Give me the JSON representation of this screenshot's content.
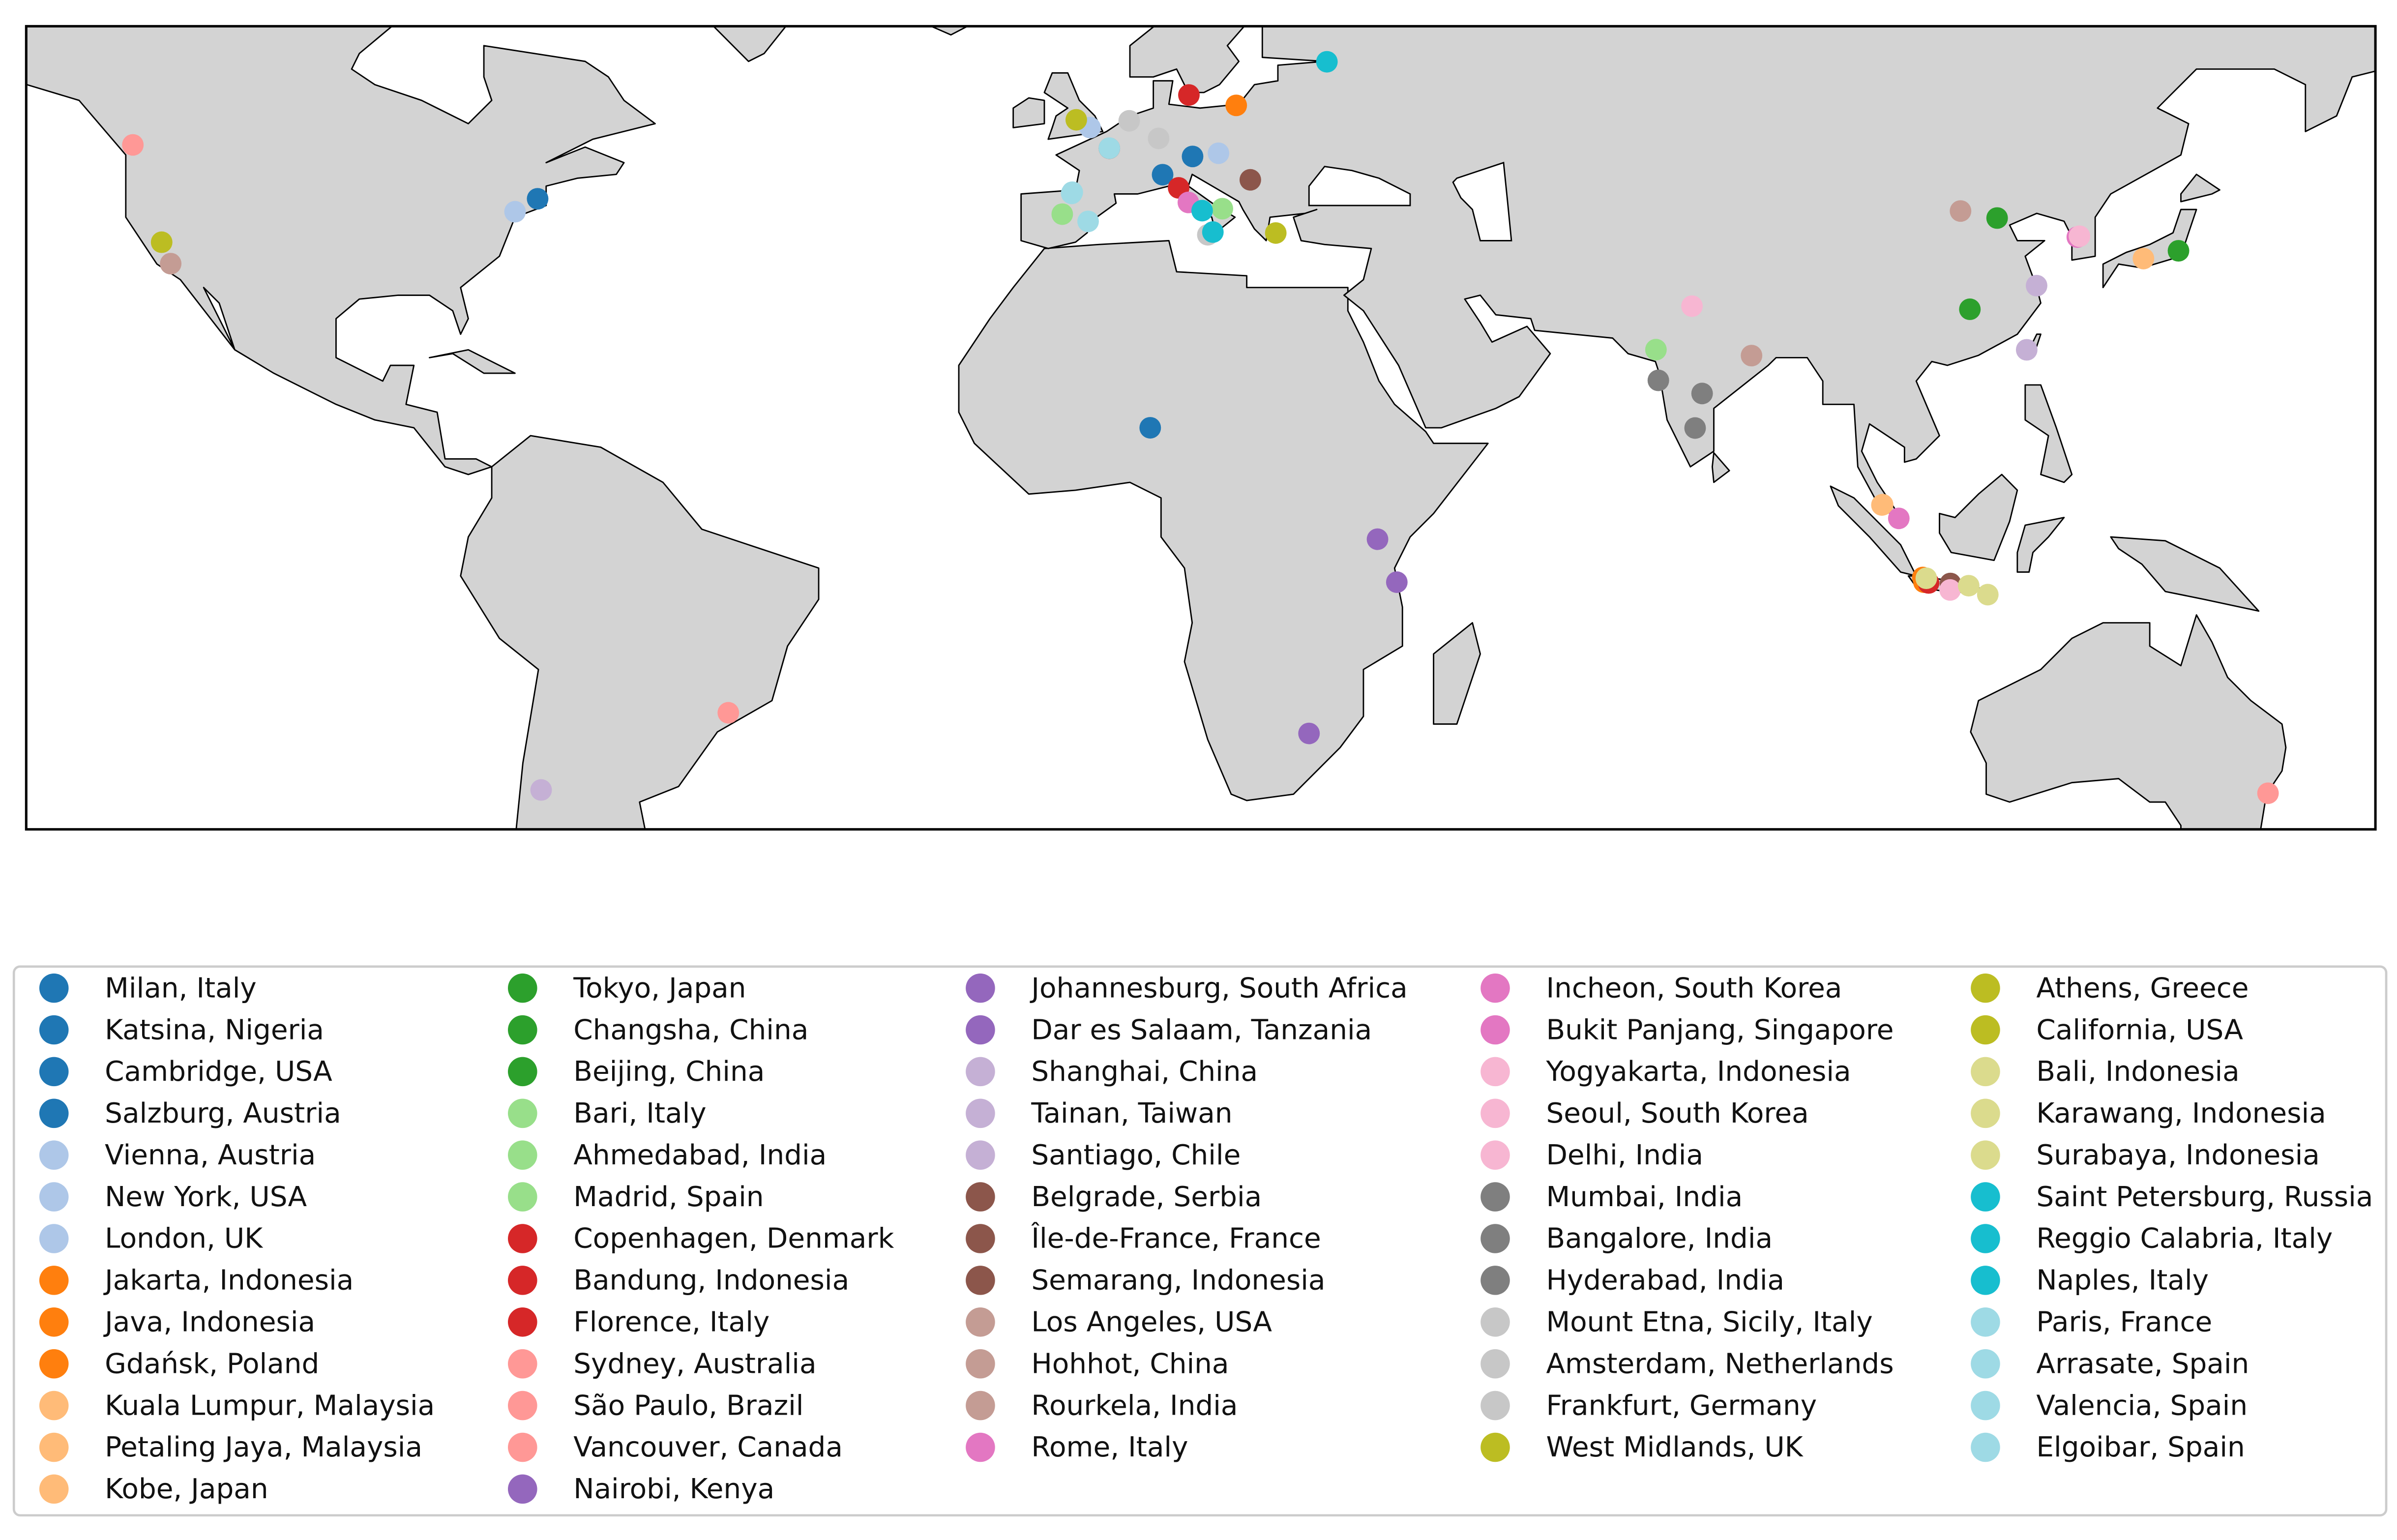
{
  "chart_data": {
    "type": "map",
    "xlim": [
      -136.8,
      165
    ],
    "ylim": [
      -38.5,
      64.5
    ],
    "series": [
      {
        "name": "Milan, Italy",
        "color": "#1f77b4",
        "x": [
          9.19
        ],
        "values": [
          45.46
        ]
      },
      {
        "name": "Katsina, Nigeria",
        "color": "#1f77b4",
        "x": [
          7.6
        ],
        "values": [
          13.0
        ]
      },
      {
        "name": "Cambridge, USA",
        "color": "#1f77b4",
        "x": [
          -71.1
        ],
        "values": [
          42.37
        ]
      },
      {
        "name": "Salzburg, Austria",
        "color": "#1f77b4",
        "x": [
          13.04
        ],
        "values": [
          47.8
        ]
      },
      {
        "name": "Vienna, Austria",
        "color": "#aec7e8",
        "x": [
          16.37
        ],
        "values": [
          48.21
        ]
      },
      {
        "name": "New York, USA",
        "color": "#aec7e8",
        "x": [
          -74.0
        ],
        "values": [
          40.71
        ]
      },
      {
        "name": "London, UK",
        "color": "#aec7e8",
        "x": [
          -0.13
        ],
        "values": [
          51.5
        ]
      },
      {
        "name": "Jakarta, Indonesia",
        "color": "#ff7f0e",
        "x": [
          106.85
        ],
        "values": [
          -6.2
        ]
      },
      {
        "name": "Java, Indonesia",
        "color": "#ff7f0e",
        "x": [
          107.0
        ],
        "values": [
          -6.8
        ]
      },
      {
        "name": "Gdańsk, Poland",
        "color": "#ff7f0e",
        "x": [
          18.65
        ],
        "values": [
          54.35
        ]
      },
      {
        "name": "Kuala Lumpur, Malaysia",
        "color": "#ffbb78",
        "x": [
          101.69
        ],
        "values": [
          3.14
        ]
      },
      {
        "name": "Petaling Jaya, Malaysia",
        "color": "#ffbb78",
        "x": [
          101.6
        ],
        "values": [
          3.1
        ]
      },
      {
        "name": "Kobe, Japan",
        "color": "#ffbb78",
        "x": [
          135.2
        ],
        "values": [
          34.7
        ]
      },
      {
        "name": "Tokyo, Japan",
        "color": "#2ca02c",
        "x": [
          139.7
        ],
        "values": [
          35.7
        ]
      },
      {
        "name": "Changsha, China",
        "color": "#2ca02c",
        "x": [
          112.9
        ],
        "values": [
          28.2
        ]
      },
      {
        "name": "Beijing, China",
        "color": "#2ca02c",
        "x": [
          116.4
        ],
        "values": [
          39.9
        ]
      },
      {
        "name": "Bari, Italy",
        "color": "#98df8a",
        "x": [
          16.87
        ],
        "values": [
          41.1
        ]
      },
      {
        "name": "Ahmedabad, India",
        "color": "#98df8a",
        "x": [
          72.57
        ],
        "values": [
          23.02
        ]
      },
      {
        "name": "Madrid, Spain",
        "color": "#98df8a",
        "x": [
          -3.7
        ],
        "values": [
          40.4
        ]
      },
      {
        "name": "Copenhagen, Denmark",
        "color": "#d62728",
        "x": [
          12.57
        ],
        "values": [
          55.68
        ]
      },
      {
        "name": "Bandung, Indonesia",
        "color": "#d62728",
        "x": [
          107.6
        ],
        "values": [
          -6.9
        ]
      },
      {
        "name": "Florence, Italy",
        "color": "#d62728",
        "x": [
          11.25
        ],
        "values": [
          43.77
        ]
      },
      {
        "name": "Sydney, Australia",
        "color": "#ff9896",
        "x": [
          151.2
        ],
        "values": [
          -33.87
        ]
      },
      {
        "name": "São Paulo, Brazil",
        "color": "#ff9896",
        "x": [
          -46.6
        ],
        "values": [
          -23.55
        ]
      },
      {
        "name": "Vancouver, Canada",
        "color": "#ff9896",
        "x": [
          -123.1
        ],
        "values": [
          49.28
        ]
      },
      {
        "name": "Nairobi, Kenya",
        "color": "#9467bd",
        "x": [
          36.8
        ],
        "values": [
          -1.29
        ]
      },
      {
        "name": "Johannesburg, South Africa",
        "color": "#9467bd",
        "x": [
          28.0
        ],
        "values": [
          -26.2
        ]
      },
      {
        "name": "Dar es Salaam, Tanzania",
        "color": "#9467bd",
        "x": [
          39.28
        ],
        "values": [
          -6.8
        ]
      },
      {
        "name": "Shanghai, China",
        "color": "#c5b0d5",
        "x": [
          121.47
        ],
        "values": [
          31.23
        ]
      },
      {
        "name": "Tainan, Taiwan",
        "color": "#c5b0d5",
        "x": [
          120.2
        ],
        "values": [
          23.0
        ]
      },
      {
        "name": "Santiago, Chile",
        "color": "#c5b0d5",
        "x": [
          -70.65
        ],
        "values": [
          -33.45
        ]
      },
      {
        "name": "Belgrade, Serbia",
        "color": "#8c564b",
        "x": [
          20.46
        ],
        "values": [
          44.8
        ]
      },
      {
        "name": "Île-de-France, France",
        "color": "#8c564b",
        "x": [
          2.35
        ],
        "values": [
          48.85
        ]
      },
      {
        "name": "Semarang, Indonesia",
        "color": "#8c564b",
        "x": [
          110.4
        ],
        "values": [
          -6.97
        ]
      },
      {
        "name": "Los Angeles, USA",
        "color": "#c49c94",
        "x": [
          -118.24
        ],
        "values": [
          34.05
        ]
      },
      {
        "name": "Hohhot, China",
        "color": "#c49c94",
        "x": [
          111.7
        ],
        "values": [
          40.8
        ]
      },
      {
        "name": "Rourkela, India",
        "color": "#c49c94",
        "x": [
          84.85
        ],
        "values": [
          22.26
        ]
      },
      {
        "name": "Rome, Italy",
        "color": "#e377c2",
        "x": [
          12.5
        ],
        "values": [
          41.9
        ]
      },
      {
        "name": "Incheon, South Korea",
        "color": "#e377c2",
        "x": [
          126.7
        ],
        "values": [
          37.46
        ]
      },
      {
        "name": "Bukit Panjang, Singapore",
        "color": "#e377c2",
        "x": [
          103.77
        ],
        "values": [
          1.38
        ]
      },
      {
        "name": "Yogyakarta, Indonesia",
        "color": "#f7b6d2",
        "x": [
          110.36
        ],
        "values": [
          -7.8
        ]
      },
      {
        "name": "Seoul, South Korea",
        "color": "#f7b6d2",
        "x": [
          126.98
        ],
        "values": [
          37.57
        ]
      },
      {
        "name": "Delhi, India",
        "color": "#f7b6d2",
        "x": [
          77.2
        ],
        "values": [
          28.6
        ]
      },
      {
        "name": "Mumbai, India",
        "color": "#7f7f7f",
        "x": [
          72.88
        ],
        "values": [
          19.08
        ]
      },
      {
        "name": "Bangalore, India",
        "color": "#7f7f7f",
        "x": [
          77.6
        ],
        "values": [
          12.97
        ]
      },
      {
        "name": "Hyderabad, India",
        "color": "#7f7f7f",
        "x": [
          78.5
        ],
        "values": [
          17.4
        ]
      },
      {
        "name": "Mount Etna, Sicily, Italy",
        "color": "#c7c7c7",
        "x": [
          15.0
        ],
        "values": [
          37.75
        ]
      },
      {
        "name": "Amsterdam, Netherlands",
        "color": "#c7c7c7",
        "x": [
          4.9
        ],
        "values": [
          52.37
        ]
      },
      {
        "name": "Frankfurt, Germany",
        "color": "#c7c7c7",
        "x": [
          8.68
        ],
        "values": [
          50.11
        ]
      },
      {
        "name": "West Midlands, UK",
        "color": "#bcbd22",
        "x": [
          -1.9
        ],
        "values": [
          52.5
        ]
      },
      {
        "name": "Athens, Greece",
        "color": "#bcbd22",
        "x": [
          23.73
        ],
        "values": [
          37.98
        ]
      },
      {
        "name": "California, USA",
        "color": "#bcbd22",
        "x": [
          -119.4
        ],
        "values": [
          36.8
        ]
      },
      {
        "name": "Bali, Indonesia",
        "color": "#dbdb8d",
        "x": [
          115.2
        ],
        "values": [
          -8.4
        ]
      },
      {
        "name": "Karawang, Indonesia",
        "color": "#dbdb8d",
        "x": [
          107.3
        ],
        "values": [
          -6.3
        ]
      },
      {
        "name": "Surabaya, Indonesia",
        "color": "#dbdb8d",
        "x": [
          112.75
        ],
        "values": [
          -7.25
        ]
      },
      {
        "name": "Saint Petersburg, Russia",
        "color": "#17becf",
        "x": [
          30.3
        ],
        "values": [
          59.94
        ]
      },
      {
        "name": "Reggio Calabria, Italy",
        "color": "#17becf",
        "x": [
          15.65
        ],
        "values": [
          38.1
        ]
      },
      {
        "name": "Naples, Italy",
        "color": "#17becf",
        "x": [
          14.27
        ],
        "values": [
          40.85
        ]
      },
      {
        "name": "Paris, France",
        "color": "#9edae5",
        "x": [
          2.35
        ],
        "values": [
          48.86
        ]
      },
      {
        "name": "Arrasate, Spain",
        "color": "#9edae5",
        "x": [
          -2.49
        ],
        "values": [
          43.06
        ]
      },
      {
        "name": "Valencia, Spain",
        "color": "#9edae5",
        "x": [
          -0.38
        ],
        "values": [
          39.47
        ]
      },
      {
        "name": "Elgoibar, Spain",
        "color": "#9edae5",
        "x": [
          -2.41
        ],
        "values": [
          43.21
        ]
      }
    ]
  }
}
